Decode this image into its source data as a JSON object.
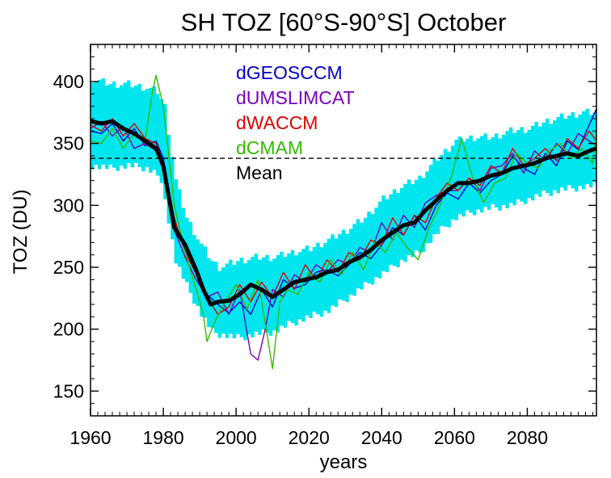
{
  "chart_data": {
    "type": "line",
    "title": "SH TOZ [60°S-90°S] October",
    "xlabel": "years",
    "ylabel": "TOZ (DU)",
    "xlim": [
      1960,
      2099
    ],
    "ylim": [
      130,
      430
    ],
    "xticks": [
      1960,
      1980,
      2000,
      2020,
      2040,
      2060,
      2080
    ],
    "yticks": [
      150,
      200,
      250,
      300,
      350,
      400
    ],
    "reference_line": {
      "y": 338,
      "style": "dashed",
      "color": "#000000"
    },
    "band": {
      "color": "#00e5ee",
      "x": [
        1960,
        1965,
        1970,
        1975,
        1978,
        1980,
        1983,
        1986,
        1990,
        1993,
        1995,
        2000,
        2005,
        2010,
        2015,
        2020,
        2025,
        2030,
        2035,
        2040,
        2045,
        2050,
        2055,
        2060,
        2065,
        2070,
        2075,
        2080,
        2085,
        2090,
        2095,
        2099
      ],
      "lower": [
        332,
        330,
        332,
        330,
        325,
        305,
        255,
        235,
        212,
        198,
        196,
        193,
        196,
        198,
        205,
        210,
        215,
        225,
        235,
        245,
        255,
        262,
        278,
        290,
        295,
        298,
        300,
        305,
        310,
        313,
        315,
        316
      ],
      "upper": [
        402,
        398,
        398,
        395,
        392,
        380,
        320,
        290,
        268,
        255,
        250,
        255,
        258,
        258,
        262,
        265,
        272,
        280,
        290,
        305,
        315,
        322,
        338,
        352,
        355,
        355,
        360,
        362,
        368,
        372,
        375,
        375
      ]
    },
    "legend": {
      "placement": "top-center"
    },
    "series": [
      {
        "name": "dGEOSCCM",
        "color": "#0000cc",
        "x": [
          1960,
          1963,
          1966,
          1969,
          1972,
          1975,
          1978,
          1980,
          1983,
          1986,
          1989,
          1992,
          1995,
          1998,
          2001,
          2004,
          2007,
          2010,
          2013,
          2016,
          2019,
          2022,
          2025,
          2028,
          2031,
          2034,
          2037,
          2040,
          2043,
          2046,
          2049,
          2052,
          2055,
          2058,
          2061,
          2064,
          2067,
          2070,
          2073,
          2076,
          2079,
          2082,
          2085,
          2088,
          2091,
          2094,
          2097,
          2099
        ],
        "y": [
          360,
          358,
          366,
          352,
          362,
          348,
          352,
          338,
          285,
          270,
          248,
          228,
          220,
          213,
          222,
          212,
          232,
          218,
          240,
          233,
          236,
          246,
          248,
          243,
          252,
          262,
          257,
          268,
          282,
          276,
          292,
          280,
          300,
          310,
          305,
          318,
          310,
          320,
          325,
          340,
          330,
          325,
          342,
          332,
          352,
          345,
          365,
          378
        ]
      },
      {
        "name": "dUMSLIMCAT",
        "color": "#7700bb",
        "x": [
          1960,
          1963,
          1966,
          1969,
          1972,
          1975,
          1978,
          1980,
          1983,
          1986,
          1989,
          1992,
          1995,
          1998,
          2001,
          2004,
          2006,
          2008,
          2010,
          2013,
          2016,
          2019,
          2022,
          2025,
          2028,
          2031,
          2034,
          2037,
          2040,
          2043,
          2046,
          2049,
          2052,
          2055,
          2058,
          2061,
          2064,
          2067,
          2070,
          2073,
          2076,
          2079,
          2082,
          2085,
          2088,
          2091,
          2094,
          2097,
          2099
        ],
        "y": [
          362,
          368,
          356,
          364,
          346,
          350,
          344,
          328,
          280,
          258,
          240,
          226,
          230,
          212,
          232,
          180,
          175,
          200,
          232,
          226,
          244,
          238,
          252,
          246,
          256,
          252,
          266,
          262,
          286,
          272,
          292,
          282,
          302,
          308,
          312,
          312,
          322,
          312,
          330,
          332,
          342,
          326,
          344,
          336,
          350,
          342,
          358,
          352,
          348
        ]
      },
      {
        "name": "dWACCM",
        "color": "#dd0000",
        "x": [
          1960,
          1963,
          1966,
          1969,
          1972,
          1975,
          1978,
          1980,
          1983,
          1986,
          1989,
          1992,
          1995,
          1998,
          2001,
          2004,
          2007,
          2010,
          2013,
          2016,
          2019,
          2022,
          2025,
          2028,
          2031,
          2034,
          2037,
          2040,
          2043,
          2046,
          2049,
          2052,
          2055,
          2058,
          2061,
          2064,
          2067,
          2070,
          2073,
          2076,
          2079,
          2082,
          2085,
          2088,
          2091,
          2094,
          2097,
          2099
        ],
        "y": [
          365,
          360,
          370,
          356,
          366,
          354,
          350,
          335,
          290,
          262,
          245,
          226,
          212,
          218,
          236,
          222,
          238,
          226,
          246,
          232,
          252,
          240,
          256,
          246,
          262,
          256,
          272,
          268,
          290,
          276,
          292,
          286,
          306,
          318,
          312,
          322,
          316,
          332,
          326,
          346,
          332,
          338,
          346,
          336,
          354,
          346,
          360,
          352
        ]
      },
      {
        "name": "dCMAM",
        "color": "#33bb00",
        "x": [
          1960,
          1963,
          1966,
          1969,
          1972,
          1975,
          1977,
          1978,
          1980,
          1983,
          1986,
          1989,
          1991,
          1992,
          1994,
          1997,
          2000,
          2003,
          2006,
          2008,
          2010,
          2012,
          2014,
          2017,
          2020,
          2023,
          2026,
          2029,
          2032,
          2035,
          2038,
          2041,
          2044,
          2047,
          2050,
          2053,
          2056,
          2059,
          2062,
          2065,
          2068,
          2071,
          2074,
          2077,
          2080,
          2083,
          2086,
          2089,
          2092,
          2095,
          2098,
          2099
        ],
        "y": [
          352,
          350,
          362,
          346,
          358,
          352,
          392,
          405,
          380,
          300,
          262,
          232,
          212,
          190,
          205,
          222,
          236,
          216,
          240,
          205,
          168,
          222,
          232,
          228,
          246,
          238,
          256,
          244,
          262,
          248,
          270,
          262,
          278,
          266,
          256,
          282,
          300,
          322,
          354,
          322,
          302,
          318,
          322,
          342,
          334,
          330,
          344,
          350,
          338,
          346,
          334,
          360
        ]
      },
      {
        "name": "Mean",
        "color": "#000000",
        "x": [
          1960,
          1963,
          1966,
          1969,
          1972,
          1975,
          1978,
          1980,
          1983,
          1986,
          1989,
          1991,
          1993,
          1995,
          1998,
          2001,
          2004,
          2007,
          2010,
          2013,
          2016,
          2019,
          2022,
          2025,
          2028,
          2031,
          2034,
          2037,
          2040,
          2043,
          2046,
          2049,
          2052,
          2055,
          2058,
          2061,
          2064,
          2067,
          2070,
          2073,
          2076,
          2079,
          2082,
          2085,
          2088,
          2091,
          2094,
          2097,
          2099
        ],
        "y": [
          368,
          366,
          368,
          362,
          358,
          352,
          346,
          332,
          282,
          268,
          248,
          232,
          220,
          222,
          223,
          228,
          236,
          232,
          226,
          232,
          238,
          240,
          242,
          246,
          248,
          254,
          258,
          264,
          272,
          278,
          284,
          286,
          296,
          304,
          312,
          318,
          318,
          320,
          324,
          326,
          330,
          332,
          334,
          338,
          340,
          342,
          340,
          344,
          346
        ]
      }
    ]
  }
}
